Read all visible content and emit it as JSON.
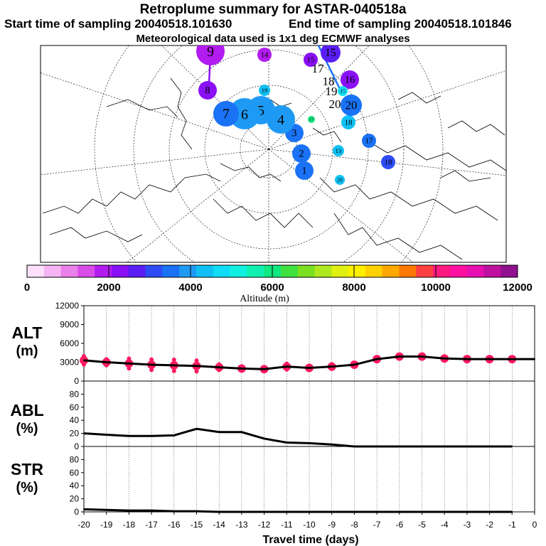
{
  "header": {
    "title": "Retroplume summary for ASTAR-040518a",
    "start_label": "Start time of sampling 20040518.101630",
    "end_label": "End time of sampling 20040518.101846",
    "met_label": "Meteorological data used is 1x1 deg ECMWF analyses"
  },
  "colorbar": {
    "ticks": [
      "0",
      "2000",
      "4000",
      "6000",
      "8000",
      "10000",
      "12000"
    ],
    "label": "Altitude (m)",
    "colors": [
      "#fce0fc",
      "#f5b5f5",
      "#ea80ea",
      "#d84ce8",
      "#b21cf0",
      "#8a10f5",
      "#5a1ef5",
      "#2e4cf5",
      "#1a72f5",
      "#1e9af5",
      "#10c0f5",
      "#10dcf5",
      "#10f0e0",
      "#10f0b0",
      "#10e880",
      "#40e040",
      "#7ae020",
      "#b0e820",
      "#e0f010",
      "#fff000",
      "#ffd000",
      "#ffa800",
      "#ff7800",
      "#ff4040",
      "#ff1a80",
      "#ff10a0",
      "#e810b0",
      "#c010a0",
      "#901090"
    ]
  },
  "map": {
    "points": [
      {
        "label": "1",
        "color": "#1a72f5"
      },
      {
        "label": "2",
        "color": "#1a72f5"
      },
      {
        "label": "3",
        "color": "#1a72f5"
      },
      {
        "label": "4",
        "color": "#1e9af5"
      },
      {
        "label": "5",
        "color": "#1e9af5"
      },
      {
        "label": "6",
        "color": "#1e9af5"
      },
      {
        "label": "7",
        "color": "#1a72f5"
      },
      {
        "label": "8",
        "color": "#8a10f5"
      },
      {
        "label": "9",
        "color": "#b21cf0"
      },
      {
        "label": "17",
        "color": "#10e880"
      },
      {
        "label": "19",
        "color": "#10c0f5"
      },
      {
        "label": "13",
        "color": "#10c0f5"
      },
      {
        "label": "20",
        "color": "#10c0f5"
      },
      {
        "label": "18",
        "color": "#10c0f5"
      },
      {
        "label": "17",
        "color": "#1a72f5"
      },
      {
        "label": "18",
        "color": "#2e4cf5"
      },
      {
        "label": "15",
        "color": "#5a1ef5"
      },
      {
        "label": "15",
        "color": "#8a10f5"
      },
      {
        "label": "14",
        "color": "#b21cf0"
      },
      {
        "label": "16",
        "color": "#8a10f5"
      },
      {
        "label": "20",
        "color": "#1a72f5"
      },
      {
        "label": "15",
        "color": "#10dcf5"
      }
    ],
    "path_labels": [
      "17",
      "18",
      "19",
      "20"
    ]
  },
  "panels": {
    "alt": {
      "label_line1": "ALT",
      "label_line2": "(m)"
    },
    "abl": {
      "label_line1": "ABL",
      "label_line2": "(%)"
    },
    "str": {
      "label_line1": "STR",
      "label_line2": "(%)"
    }
  },
  "chart_data": [
    {
      "type": "line",
      "title": "ALT",
      "ylabel": "ALT (m)",
      "xlabel": "Travel time (days)",
      "ylim": [
        0,
        12000
      ],
      "yticks": [
        "0",
        "3000",
        "6000",
        "9000",
        "12000"
      ],
      "x": [
        -20,
        -19,
        -18,
        -17,
        -16,
        -15,
        -14,
        -13,
        -12,
        -11,
        -10,
        -9,
        -8,
        -7,
        -6,
        -5,
        -4,
        -3,
        -2,
        -1,
        0
      ],
      "values": [
        3300,
        3000,
        2800,
        2600,
        2500,
        2400,
        2200,
        2000,
        1900,
        2300,
        2100,
        2300,
        2600,
        3500,
        3900,
        3900,
        3600,
        3500,
        3500,
        3500,
        3500
      ],
      "scatter_color": "#ff1a60"
    },
    {
      "type": "line",
      "title": "ABL",
      "ylabel": "ABL (%)",
      "ylim": [
        0,
        100
      ],
      "yticks": [
        "0",
        "20",
        "40",
        "60",
        "80"
      ],
      "x": [
        -20,
        -19,
        -18,
        -17,
        -16,
        -15,
        -14,
        -13,
        -12,
        -11,
        -10,
        -9,
        -8,
        -7,
        -6,
        -5,
        -4,
        -3,
        -2,
        -1
      ],
      "values": [
        20,
        18,
        16,
        16,
        17,
        27,
        22,
        22,
        12,
        6,
        5,
        3,
        0,
        0,
        0,
        0,
        0,
        0,
        0,
        0
      ]
    },
    {
      "type": "line",
      "title": "STR",
      "ylabel": "STR (%)",
      "ylim": [
        0,
        100
      ],
      "yticks": [
        "0",
        "20",
        "40",
        "60",
        "80"
      ],
      "x": [
        -20,
        -19,
        -18,
        -17,
        -16,
        -15,
        -14,
        -13,
        -12,
        -11,
        -10,
        -9,
        -8,
        -7,
        -6,
        -5,
        -4,
        -3,
        -2,
        -1
      ],
      "values": [
        4,
        3,
        2,
        2,
        1,
        1,
        0,
        0,
        0,
        0,
        0,
        0,
        0,
        0,
        0,
        0,
        0,
        0,
        0,
        0
      ],
      "xticks": [
        "-20",
        "-19",
        "-18",
        "-17",
        "-16",
        "-15",
        "-14",
        "-13",
        "-12",
        "-11",
        "-10",
        "-9",
        "-8",
        "-7",
        "-6",
        "-5",
        "-4",
        "-3",
        "-2",
        "-1",
        "0"
      ]
    }
  ]
}
